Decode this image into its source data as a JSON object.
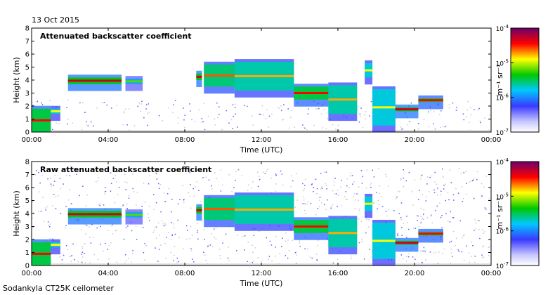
{
  "date": "13 Oct 2015",
  "footer": "Sodankyla CT25K ceilometer",
  "chart_data": [
    {
      "type": "heatmap",
      "title": "Attenuated backscatter coefficient",
      "xlabel": "Time (UTC)",
      "ylabel": "Height (km)",
      "x_ticks": [
        "00:00",
        "04:00",
        "08:00",
        "12:00",
        "16:00",
        "20:00",
        "00:00"
      ],
      "x_tick_hours": [
        0,
        4,
        8,
        12,
        16,
        20,
        24
      ],
      "xlim": [
        0,
        24
      ],
      "ylim": [
        0,
        8
      ],
      "y_ticks": [
        0,
        1,
        2,
        3,
        4,
        5,
        6,
        7,
        8
      ],
      "colorbar": {
        "label": "m⁻¹ sr⁻¹",
        "scale": "log",
        "range": [
          1e-07,
          0.0001
        ],
        "ticks": [
          {
            "value": 0.0001,
            "mantissa": "10",
            "exp": "-4"
          },
          {
            "value": 1e-05,
            "mantissa": "10",
            "exp": "-5"
          },
          {
            "value": 1e-06,
            "mantissa": "10",
            "exp": "-6"
          },
          {
            "value": 1e-07,
            "mantissa": "10",
            "exp": "-7"
          }
        ]
      },
      "cloud_layers": [
        {
          "t_start": 0.0,
          "t_end": 1.0,
          "base_km": 0.0,
          "top_km": 1.8,
          "level": 0.85
        },
        {
          "t_start": 1.0,
          "t_end": 1.5,
          "base_km": 1.4,
          "top_km": 1.8,
          "level": 0.7
        },
        {
          "t_start": 1.9,
          "t_end": 4.7,
          "base_km": 3.7,
          "top_km": 4.2,
          "level": 0.9
        },
        {
          "t_start": 4.9,
          "t_end": 5.8,
          "base_km": 3.7,
          "top_km": 4.1,
          "level": 0.6
        },
        {
          "t_start": 8.6,
          "t_end": 8.9,
          "base_km": 4.0,
          "top_km": 4.5,
          "level": 0.9
        },
        {
          "t_start": 9.0,
          "t_end": 10.6,
          "base_km": 3.5,
          "top_km": 5.2,
          "level": 0.8
        },
        {
          "t_start": 10.6,
          "t_end": 13.7,
          "base_km": 3.2,
          "top_km": 5.4,
          "level": 0.75
        },
        {
          "t_start": 13.7,
          "t_end": 15.5,
          "base_km": 2.5,
          "top_km": 3.5,
          "level": 0.85
        },
        {
          "t_start": 15.5,
          "t_end": 17.0,
          "base_km": 1.4,
          "top_km": 3.6,
          "level": 0.75
        },
        {
          "t_start": 17.4,
          "t_end": 17.8,
          "base_km": 4.2,
          "top_km": 5.3,
          "level": 0.7
        },
        {
          "t_start": 17.8,
          "t_end": 19.0,
          "base_km": 0.5,
          "top_km": 3.3,
          "level": 0.7
        },
        {
          "t_start": 19.0,
          "t_end": 20.2,
          "base_km": 1.6,
          "top_km": 1.9,
          "level": 0.9
        },
        {
          "t_start": 20.2,
          "t_end": 21.5,
          "base_km": 2.3,
          "top_km": 2.6,
          "level": 0.85
        }
      ]
    },
    {
      "type": "heatmap",
      "title": "Raw attenuated backscatter coefficient",
      "xlabel": "Time (UTC)",
      "ylabel": "Height (km)",
      "x_ticks": [
        "00:00",
        "04:00",
        "08:00",
        "12:00",
        "16:00",
        "20:00",
        "00:00"
      ],
      "x_tick_hours": [
        0,
        4,
        8,
        12,
        16,
        20,
        24
      ],
      "xlim": [
        0,
        24
      ],
      "ylim": [
        0,
        8
      ],
      "y_ticks": [
        0,
        1,
        2,
        3,
        4,
        5,
        6,
        7,
        8
      ],
      "colorbar": {
        "label": "m⁻¹ sr⁻¹",
        "scale": "log",
        "range": [
          1e-07,
          0.0001
        ],
        "ticks": [
          {
            "value": 0.0001,
            "mantissa": "10",
            "exp": "-4"
          },
          {
            "value": 1e-05,
            "mantissa": "10",
            "exp": "-5"
          },
          {
            "value": 1e-06,
            "mantissa": "10",
            "exp": "-6"
          },
          {
            "value": 1e-07,
            "mantissa": "10",
            "exp": "-7"
          }
        ]
      },
      "cloud_layers": [
        {
          "t_start": 0.0,
          "t_end": 1.0,
          "base_km": 0.0,
          "top_km": 1.8,
          "level": 0.85
        },
        {
          "t_start": 1.0,
          "t_end": 1.5,
          "base_km": 1.4,
          "top_km": 1.8,
          "level": 0.7
        },
        {
          "t_start": 1.9,
          "t_end": 4.7,
          "base_km": 3.7,
          "top_km": 4.2,
          "level": 0.9
        },
        {
          "t_start": 4.9,
          "t_end": 5.8,
          "base_km": 3.7,
          "top_km": 4.1,
          "level": 0.6
        },
        {
          "t_start": 8.6,
          "t_end": 8.9,
          "base_km": 4.0,
          "top_km": 4.5,
          "level": 0.9
        },
        {
          "t_start": 9.0,
          "t_end": 10.6,
          "base_km": 3.5,
          "top_km": 5.2,
          "level": 0.8
        },
        {
          "t_start": 10.6,
          "t_end": 13.7,
          "base_km": 3.2,
          "top_km": 5.4,
          "level": 0.75
        },
        {
          "t_start": 13.7,
          "t_end": 15.5,
          "base_km": 2.5,
          "top_km": 3.5,
          "level": 0.85
        },
        {
          "t_start": 15.5,
          "t_end": 17.0,
          "base_km": 1.4,
          "top_km": 3.6,
          "level": 0.75
        },
        {
          "t_start": 17.4,
          "t_end": 17.8,
          "base_km": 4.2,
          "top_km": 5.3,
          "level": 0.7
        },
        {
          "t_start": 17.8,
          "t_end": 19.0,
          "base_km": 0.5,
          "top_km": 3.3,
          "level": 0.7
        },
        {
          "t_start": 19.0,
          "t_end": 20.2,
          "base_km": 1.6,
          "top_km": 1.9,
          "level": 0.9
        },
        {
          "t_start": 20.2,
          "t_end": 21.5,
          "base_km": 2.3,
          "top_km": 2.6,
          "level": 0.85
        }
      ]
    }
  ]
}
